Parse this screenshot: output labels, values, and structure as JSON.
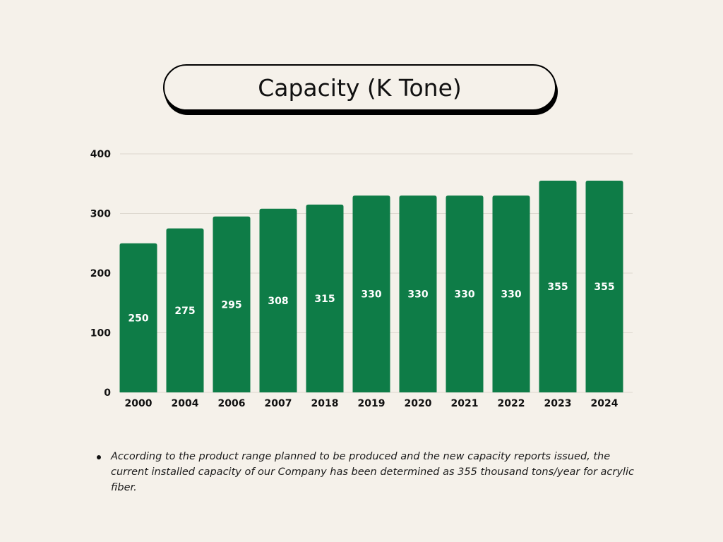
{
  "chart_data": {
    "type": "bar",
    "title": "Capacity (K Tone)",
    "categories": [
      "2000",
      "2004",
      "2006",
      "2007",
      "2018",
      "2019",
      "2020",
      "2021",
      "2022",
      "2023",
      "2024"
    ],
    "values": [
      250,
      275,
      295,
      308,
      315,
      330,
      330,
      330,
      330,
      355,
      355
    ],
    "ylim": [
      0,
      400
    ],
    "yticks": [
      0,
      100,
      200,
      300,
      400
    ],
    "grid": true,
    "bar_color": "#0e7c47",
    "value_labels": "inside-bar"
  },
  "note": {
    "text": "According to the product range planned to be produced and the new capacity reports issued, the current installed capacity of our Company has been determined as 355 thousand tons/year for acrylic fiber."
  }
}
